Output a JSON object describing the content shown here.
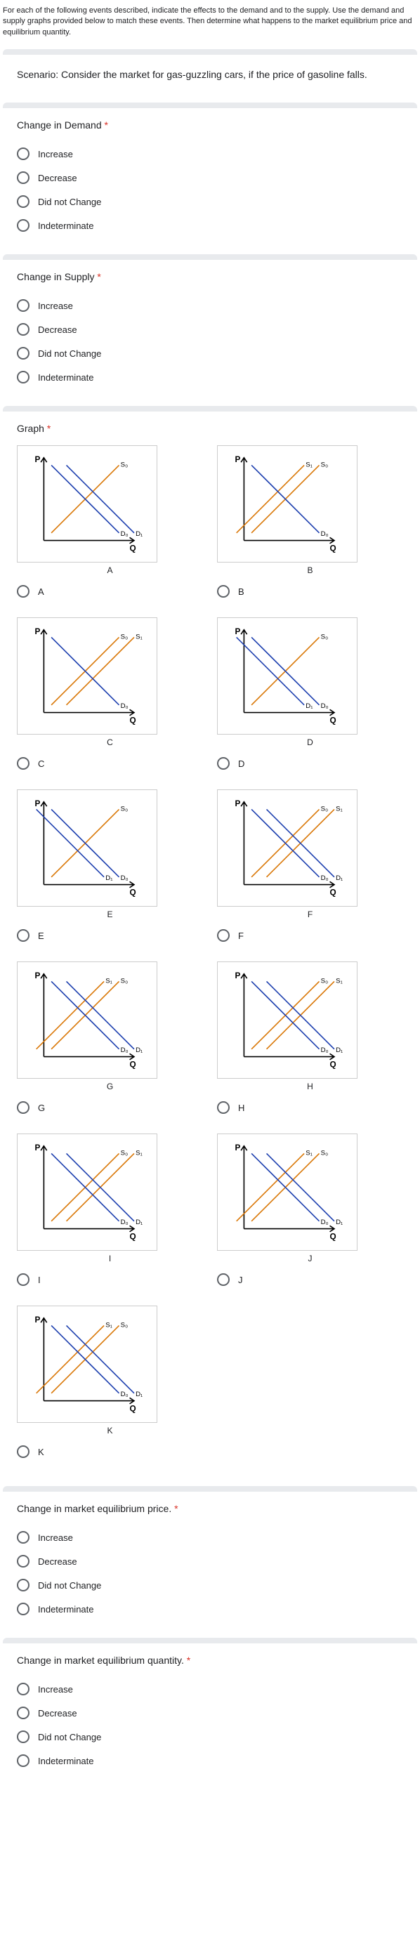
{
  "header": "For each of the following events described, indicate the effects to the demand and to the supply. Use the demand and supply graphs provided below to match these events. Then determine what happens to the market equilibrium price and equilibrium quantity.",
  "scenario": "Scenario: Consider the market for gas-guzzling cars, if the price of gasoline falls.",
  "q_demand": {
    "title": "Change in Demand",
    "options": [
      "Increase",
      "Decrease",
      "Did not Change",
      "Indeterminate"
    ]
  },
  "q_supply": {
    "title": "Change in Supply",
    "options": [
      "Increase",
      "Decrease",
      "Did not Change",
      "Indeterminate"
    ]
  },
  "q_graph": {
    "title": "Graph",
    "letters": [
      "A",
      "B",
      "C",
      "D",
      "E",
      "F",
      "G",
      "H",
      "I",
      "J",
      "K"
    ]
  },
  "q_price": {
    "title": "Change in market equilibrium price.",
    "options": [
      "Increase",
      "Decrease",
      "Did not Change",
      "Indeterminate"
    ]
  },
  "q_qty": {
    "title": "Change in market equilibrium quantity.",
    "options": [
      "Increase",
      "Decrease",
      "Did not Change",
      "Indeterminate"
    ]
  },
  "axis": {
    "p": "P",
    "q": "Q"
  },
  "lbl": {
    "s0": "S₀",
    "s1": "S₁",
    "d0": "D₀",
    "d1": "D₁"
  },
  "colors": {
    "axis": "#000000",
    "supply": "#d97706",
    "demand": "#1e40af",
    "shift": "#6b7280",
    "bg": "#ffffff"
  }
}
